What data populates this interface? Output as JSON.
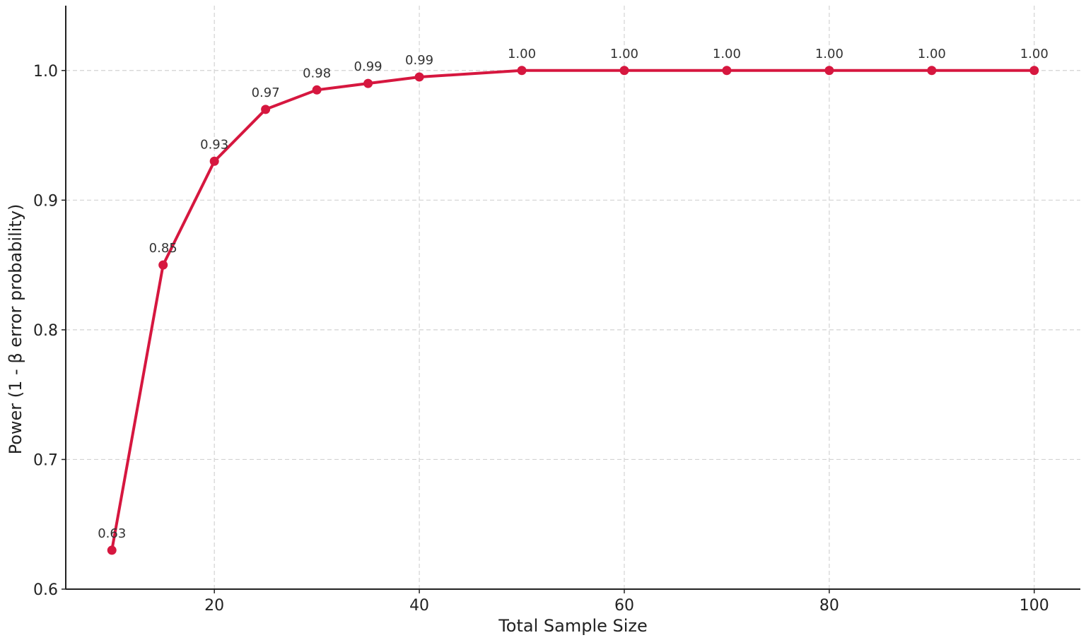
{
  "chart_data": {
    "type": "line",
    "title": "",
    "xlabel": "Total Sample Size",
    "ylabel": "Power (1 - β error probability)",
    "x": [
      10,
      15,
      20,
      25,
      30,
      35,
      40,
      50,
      60,
      70,
      80,
      90,
      100
    ],
    "series": [
      {
        "values": [
          0.63,
          0.85,
          0.93,
          0.97,
          0.985,
          0.99,
          0.995,
          1.0,
          1.0,
          1.0,
          1.0,
          1.0,
          1.0
        ],
        "labels": [
          "0.63",
          "0.85",
          "0.93",
          "0.97",
          "0.98",
          "0.99",
          "0.99",
          "1.00",
          "1.00",
          "1.00",
          "1.00",
          "1.00",
          "1.00"
        ],
        "color": "#d6173f"
      }
    ],
    "xlim": [
      5.5,
      104.5
    ],
    "ylim": [
      0.6,
      1.05
    ],
    "xticks": [
      20,
      40,
      60,
      80,
      100
    ],
    "xtick_labels": [
      "20",
      "40",
      "60",
      "80",
      "100"
    ],
    "yticks": [
      0.6,
      0.7,
      0.8,
      0.9,
      1.0
    ],
    "ytick_labels": [
      "0.6",
      "0.7",
      "0.8",
      "0.9",
      "1.0"
    ],
    "grid": true
  }
}
